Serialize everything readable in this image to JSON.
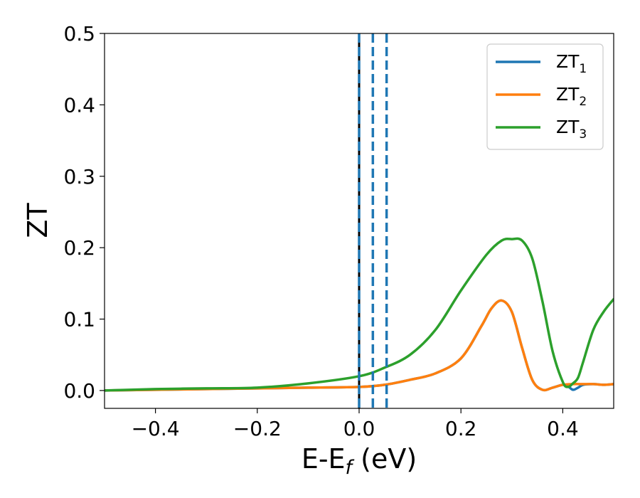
{
  "chart_data": {
    "type": "line",
    "xlabel_main": "E-E",
    "xlabel_sub": "f",
    "xlabel_unit": " (eV)",
    "ylabel": "ZT",
    "xlim": [
      -0.5,
      0.5
    ],
    "ylim": [
      -0.025,
      0.5
    ],
    "xticks": [
      -0.4,
      -0.2,
      0.0,
      0.2,
      0.4
    ],
    "xtick_labels": [
      "−0.4",
      "−0.2",
      "0.0",
      "0.2",
      "0.4"
    ],
    "yticks": [
      0.0,
      0.1,
      0.2,
      0.3,
      0.4,
      0.5
    ],
    "ytick_labels": [
      "0.0",
      "0.1",
      "0.2",
      "0.3",
      "0.4",
      "0.5"
    ],
    "grid": false,
    "legend_position": "top-right",
    "series": [
      {
        "name_main": "ZT",
        "name_sub": "1",
        "color": "#1f77b4",
        "x": [
          -0.5,
          -0.4,
          -0.3,
          -0.2,
          -0.1,
          0.0,
          0.05,
          0.1,
          0.15,
          0.2,
          0.24,
          0.26,
          0.28,
          0.3,
          0.32,
          0.34,
          0.36,
          0.38,
          0.4,
          0.41,
          0.42,
          0.43,
          0.44,
          0.46,
          0.48,
          0.5
        ],
        "y": [
          0.0,
          0.001,
          0.002,
          0.003,
          0.004,
          0.005,
          0.008,
          0.015,
          0.024,
          0.045,
          0.09,
          0.115,
          0.126,
          0.11,
          0.06,
          0.015,
          0.001,
          0.004,
          0.008,
          0.006,
          0.001,
          0.004,
          0.008,
          0.009,
          0.008,
          0.009
        ]
      },
      {
        "name_main": "ZT",
        "name_sub": "2",
        "color": "#ff7f0e",
        "x": [
          -0.5,
          -0.4,
          -0.3,
          -0.2,
          -0.1,
          0.0,
          0.05,
          0.1,
          0.15,
          0.2,
          0.24,
          0.26,
          0.28,
          0.3,
          0.32,
          0.34,
          0.36,
          0.38,
          0.4,
          0.42,
          0.44,
          0.46,
          0.48,
          0.5
        ],
        "y": [
          0.0,
          0.001,
          0.002,
          0.003,
          0.004,
          0.005,
          0.008,
          0.015,
          0.024,
          0.045,
          0.09,
          0.115,
          0.126,
          0.11,
          0.06,
          0.015,
          0.001,
          0.004,
          0.008,
          0.009,
          0.009,
          0.009,
          0.008,
          0.009
        ]
      },
      {
        "name_main": "ZT",
        "name_sub": "3",
        "color": "#2ca02c",
        "x": [
          -0.5,
          -0.4,
          -0.3,
          -0.2,
          -0.1,
          0.0,
          0.05,
          0.1,
          0.15,
          0.2,
          0.25,
          0.28,
          0.3,
          0.32,
          0.34,
          0.36,
          0.38,
          0.4,
          0.41,
          0.42,
          0.43,
          0.44,
          0.46,
          0.48,
          0.5
        ],
        "y": [
          0.0,
          0.002,
          0.003,
          0.004,
          0.01,
          0.02,
          0.032,
          0.05,
          0.085,
          0.14,
          0.19,
          0.21,
          0.212,
          0.21,
          0.185,
          0.125,
          0.055,
          0.012,
          0.005,
          0.01,
          0.018,
          0.04,
          0.085,
          0.11,
          0.128
        ]
      }
    ],
    "vlines": [
      {
        "x": 0.0,
        "color": "#000000",
        "style": "solid"
      },
      {
        "x": 0.0,
        "color": "#1f77b4",
        "style": "dashed"
      },
      {
        "x": 0.027,
        "color": "#1f77b4",
        "style": "dashed"
      },
      {
        "x": 0.054,
        "color": "#1f77b4",
        "style": "dashed"
      }
    ]
  }
}
